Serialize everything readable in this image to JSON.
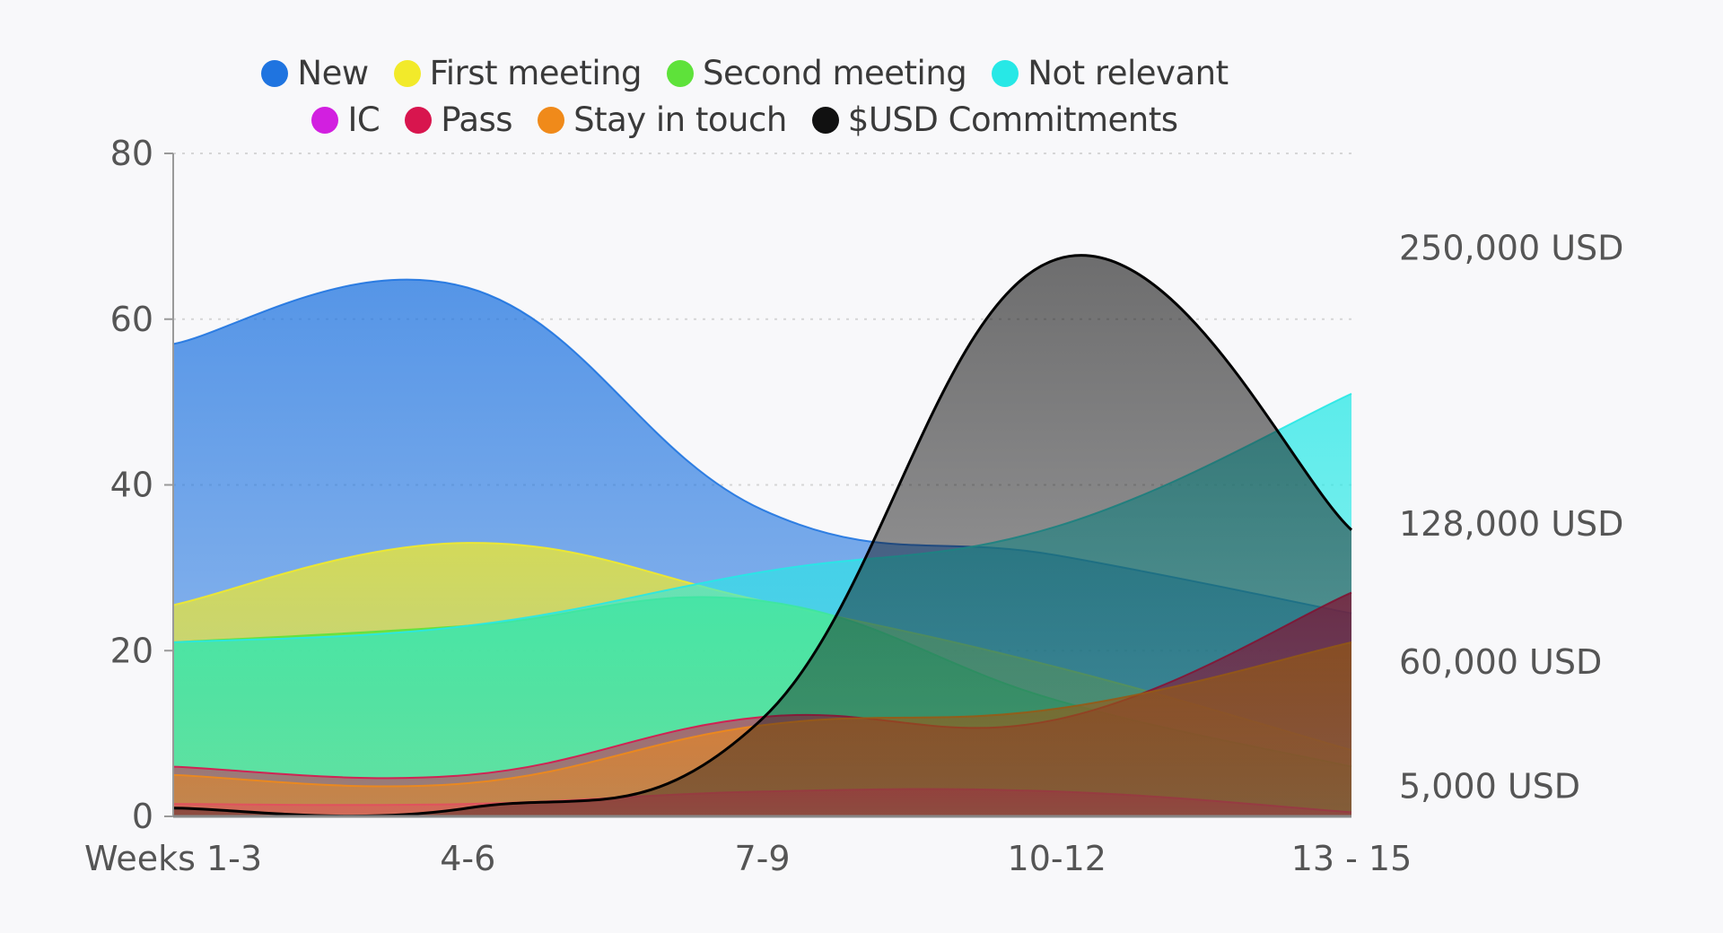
{
  "chart_data": {
    "type": "area",
    "title": "",
    "xlabel": "",
    "ylabel": "",
    "categories": [
      "Weeks 1-3",
      "4-6",
      "7-9",
      "10-12",
      "13 - 15"
    ],
    "ylim": [
      0,
      80
    ],
    "yticks": [
      "0",
      "20",
      "40",
      "60",
      "80"
    ],
    "grid": true,
    "legend_position": "top",
    "series": [
      {
        "name": "New",
        "color": "#1f74e0",
        "values": [
          57,
          63.8,
          37,
          31.5,
          24.5
        ]
      },
      {
        "name": "First meeting",
        "color": "#f2ea2a",
        "values": [
          25.5,
          33,
          26,
          18,
          8
        ]
      },
      {
        "name": "Second meeting",
        "color": "#5ee23a",
        "values": [
          21,
          23,
          26,
          14,
          6
        ]
      },
      {
        "name": "Not relevant",
        "color": "#27e8e6",
        "values": [
          21,
          23,
          29.5,
          35,
          51
        ]
      },
      {
        "name": "IC",
        "color": "#d21fe0",
        "values": [
          1.5,
          1.5,
          3,
          3,
          0.5
        ]
      },
      {
        "name": "Pass",
        "color": "#d8154e",
        "values": [
          6,
          5,
          12,
          11.7,
          27
        ]
      },
      {
        "name": "Stay in touch",
        "color": "#f08a1a",
        "values": [
          5,
          4,
          11,
          13,
          21
        ]
      },
      {
        "name": "$USD Commitments",
        "color": "#111111",
        "axis": "right",
        "values": [
          0,
          0,
          35000,
          245000,
          125000
        ]
      }
    ],
    "right_axis": {
      "ticks": [
        "250,000 USD",
        "128,000 USD",
        "60,000 USD",
        "5,000 USD"
      ],
      "tick_values": [
        250000,
        128000,
        60000,
        5000
      ]
    }
  }
}
